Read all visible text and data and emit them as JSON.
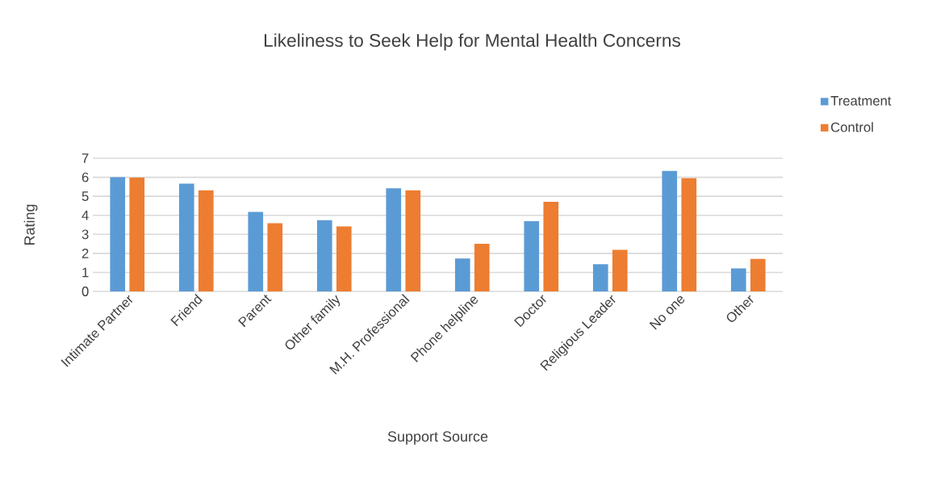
{
  "chart_data": {
    "type": "bar",
    "title": "Likeliness to Seek Help for Mental Health Concerns",
    "xlabel": "Support Source",
    "ylabel": "Rating",
    "categories": [
      "Intimate Partner",
      "Friend",
      "Parent",
      "Other family",
      "M.H. Professional",
      "Phone helpline",
      "Doctor",
      "Religious Leader",
      "No one",
      "Other"
    ],
    "series": [
      {
        "name": "Treatment",
        "color": "#5b9bd5",
        "values": [
          6.0,
          5.66,
          4.18,
          3.74,
          5.42,
          1.73,
          3.69,
          1.43,
          6.33,
          1.21
        ]
      },
      {
        "name": "Control",
        "color": "#ed7d31",
        "values": [
          5.98,
          5.31,
          3.58,
          3.42,
          5.31,
          2.5,
          4.71,
          2.18,
          5.95,
          1.71
        ]
      }
    ],
    "ylim": [
      0,
      7
    ],
    "yticks": [
      0,
      1,
      2,
      3,
      4,
      5,
      6,
      7
    ],
    "grid": "y",
    "legend": "top right"
  }
}
